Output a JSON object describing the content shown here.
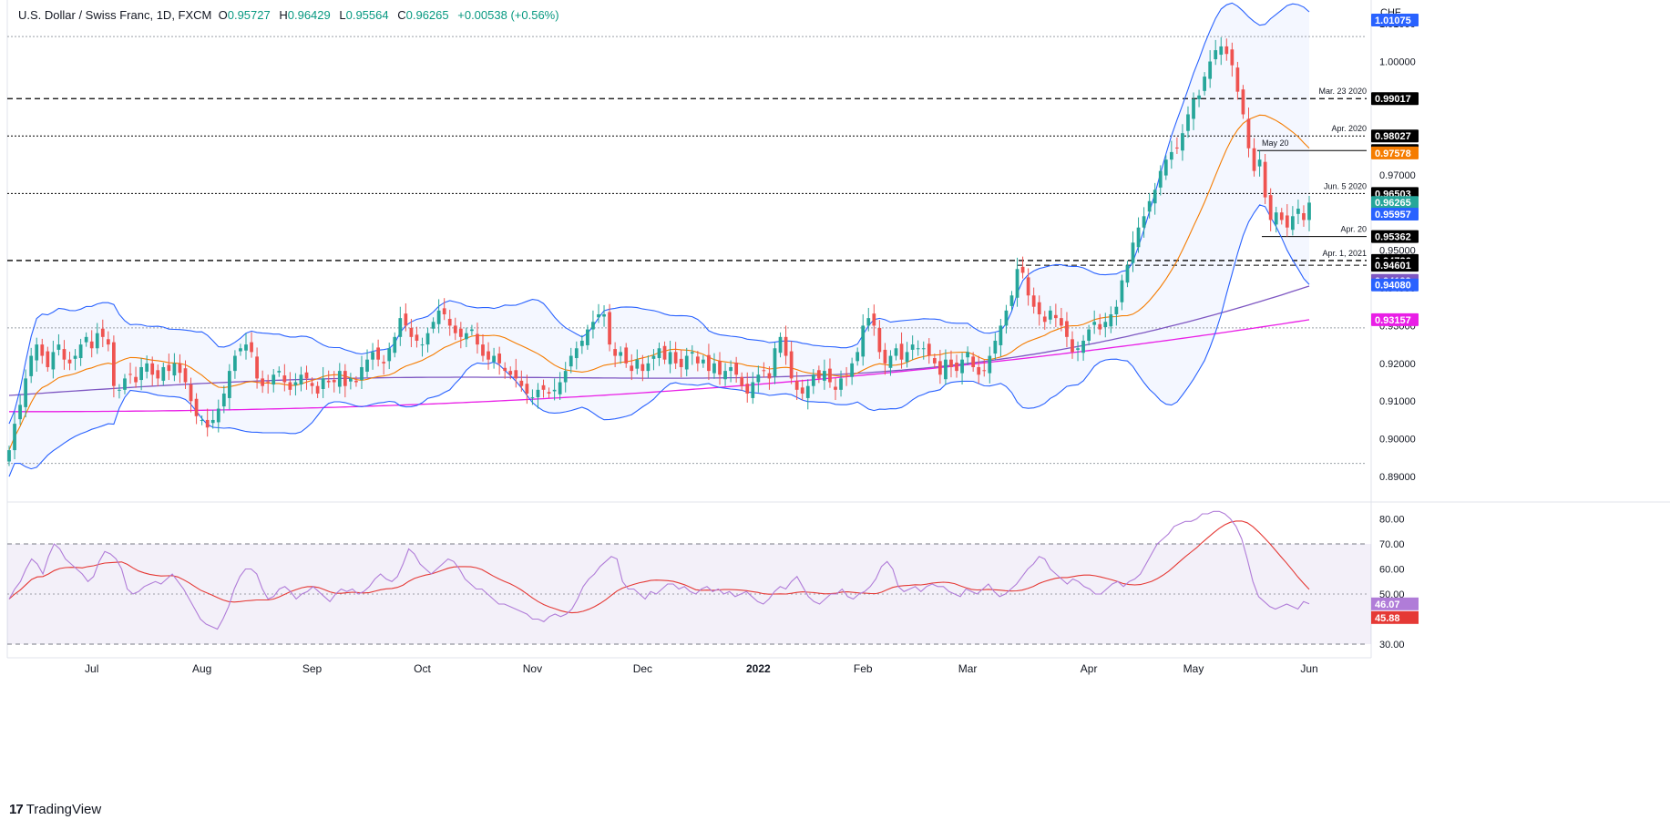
{
  "legend": {
    "symbol": "U.S. Dollar / Swiss Franc, 1D, FXCM",
    "open_label": "O",
    "open": "0.95727",
    "high_label": "H",
    "high": "0.96429",
    "low_label": "L",
    "low": "0.95564",
    "close_label": "C",
    "close": "0.96265",
    "change": "+0.00538 (+0.56%)"
  },
  "currency_label": "CHF",
  "brand": {
    "logo": "17",
    "name": "TradingView"
  },
  "colors": {
    "up": "#26a69a",
    "down": "#ef5350",
    "bb": "#2962ff",
    "bb_fill": "#2962ff",
    "ma20": "#f57c00",
    "ma100": "#7e57c2",
    "ma200": "#e91ee6",
    "rsi": "#b07cd8",
    "rsi_ma": "#e53935",
    "rsi_band": "#7e57c2"
  },
  "chart_data": [
    {
      "type": "candlestick",
      "title": "U.S. Dollar / Swiss Franc, 1D, FXCM",
      "ylim": [
        0.8835,
        1.0163
      ],
      "yticks": [
        "0.89000",
        "0.90000",
        "0.91000",
        "0.92000",
        "0.93000",
        "0.94000",
        "0.95000",
        "0.96000",
        "0.97000",
        "0.98000",
        "0.99000",
        "1.00000",
        "1.01000"
      ],
      "xlabels": [
        {
          "label": "Jul",
          "t": 16
        },
        {
          "label": "Aug",
          "t": 37
        },
        {
          "label": "Sep",
          "t": 59
        },
        {
          "label": "Oct",
          "t": 80
        },
        {
          "label": "Nov",
          "t": 101
        },
        {
          "label": "Dec",
          "t": 123
        },
        {
          "label": "2022",
          "t": 145,
          "bold": true
        },
        {
          "label": "Feb",
          "t": 166
        },
        {
          "label": "Mar",
          "t": 186
        },
        {
          "label": "Apr",
          "t": 209
        },
        {
          "label": "May",
          "t": 230
        },
        {
          "label": "Jun",
          "t": 252
        }
      ],
      "closes": [
        0.897,
        0.904,
        0.909,
        0.916,
        0.922,
        0.925,
        0.922,
        0.919,
        0.923,
        0.925,
        0.921,
        0.92,
        0.922,
        0.925,
        0.927,
        0.924,
        0.928,
        0.927,
        0.925,
        0.914,
        0.913,
        0.916,
        0.917,
        0.915,
        0.919,
        0.92,
        0.917,
        0.916,
        0.919,
        0.918,
        0.92,
        0.9175,
        0.915,
        0.91,
        0.906,
        0.905,
        0.903,
        0.905,
        0.908,
        0.912,
        0.918,
        0.922,
        0.924,
        0.925,
        0.923,
        0.916,
        0.914,
        0.915,
        0.917,
        0.918,
        0.915,
        0.913,
        0.915,
        0.917,
        0.916,
        0.914,
        0.912,
        0.916,
        0.915,
        0.915,
        0.918,
        0.914,
        0.916,
        0.915,
        0.919,
        0.921,
        0.923,
        0.921,
        0.92,
        0.924,
        0.927,
        0.932,
        0.93,
        0.927,
        0.926,
        0.925,
        0.928,
        0.931,
        0.934,
        0.933,
        0.93,
        0.928,
        0.927,
        0.928,
        0.929,
        0.925,
        0.922,
        0.921,
        0.922,
        0.92,
        0.918,
        0.917,
        0.916,
        0.914,
        0.912,
        0.911,
        0.913,
        0.913,
        0.912,
        0.913,
        0.915,
        0.918,
        0.922,
        0.924,
        0.926,
        0.929,
        0.931,
        0.933,
        0.933,
        0.925,
        0.922,
        0.923,
        0.92,
        0.918,
        0.921,
        0.918,
        0.92,
        0.922,
        0.924,
        0.921,
        0.923,
        0.92,
        0.919,
        0.922,
        0.923,
        0.92,
        0.921,
        0.918,
        0.92,
        0.917,
        0.918,
        0.919,
        0.917,
        0.914,
        0.912,
        0.915,
        0.917,
        0.918,
        0.916,
        0.924,
        0.927,
        0.922,
        0.916,
        0.913,
        0.912,
        0.914,
        0.917,
        0.916,
        0.918,
        0.915,
        0.913,
        0.916,
        0.917,
        0.92,
        0.923,
        0.93,
        0.932,
        0.93,
        0.923,
        0.92,
        0.922,
        0.924,
        0.921,
        0.923,
        0.925,
        0.924,
        0.924,
        0.922,
        0.92,
        0.917,
        0.921,
        0.919,
        0.918,
        0.921,
        0.923,
        0.919,
        0.917,
        0.918,
        0.922,
        0.926,
        0.93,
        0.934,
        0.938,
        0.945,
        0.944,
        0.938,
        0.935,
        0.933,
        0.931,
        0.934,
        0.932,
        0.93,
        0.927,
        0.923,
        0.924,
        0.926,
        0.929,
        0.931,
        0.929,
        0.931,
        0.933,
        0.935,
        0.942,
        0.946,
        0.952,
        0.956,
        0.959,
        0.963,
        0.966,
        0.971,
        0.974,
        0.976,
        0.977,
        0.981,
        0.986,
        0.99,
        0.991,
        0.996,
        1.0,
        1.003,
        1.004,
        1.002,
        0.999,
        0.992,
        0.986,
        0.977,
        0.971,
        0.974,
        0.964,
        0.958,
        0.96,
        0.958,
        0.956,
        0.959,
        0.961,
        0.958,
        0.9626
      ],
      "bands": [
        {
          "name": "",
          "y": 1.0066,
          "style": "dotted",
          "color": "#9aa0a6"
        },
        {
          "name": "Mar. 23 2020",
          "y": 0.99017,
          "style": "dashed",
          "color": "#000000"
        },
        {
          "name": "Apr. 2020",
          "y": 0.98027,
          "style": "dotted",
          "color": "#000000"
        },
        {
          "name": "May 20",
          "y": 0.97641,
          "style": "solid-short",
          "color": "#000000"
        },
        {
          "name": "Jun. 5 2020",
          "y": 0.96503,
          "style": "dotted",
          "color": "#000000"
        },
        {
          "name": "Apr. 20",
          "y": 0.95362,
          "style": "solid-short",
          "color": "#000000"
        },
        {
          "name": "Apr. 1, 2021",
          "y": 0.94726,
          "style": "dashed",
          "color": "#000000"
        },
        {
          "name": "",
          "y": 0.94601,
          "style": "dashed-short",
          "color": "#000000"
        },
        {
          "name": "",
          "y": 0.9294,
          "style": "dotted",
          "color": "#9aa0a6"
        },
        {
          "name": "",
          "y": 0.8935,
          "style": "dotted",
          "color": "#9aa0a6"
        }
      ],
      "price_tags": [
        {
          "value": "1.01075",
          "y": 1.01075,
          "bg": "#2962ff",
          "partial": true
        },
        {
          "value": "0.99017",
          "y": 0.99017,
          "bg": "#000000"
        },
        {
          "value": "0.98027",
          "y": 0.98027,
          "bg": "#000000"
        },
        {
          "value": "0.97641",
          "y": 0.97641,
          "bg": "#000000"
        },
        {
          "value": "0.97578",
          "y": 0.97578,
          "bg": "#f57c00"
        },
        {
          "value": "0.96503",
          "y": 0.96503,
          "bg": "#000000"
        },
        {
          "value": "0.96265",
          "y": 0.96265,
          "bg": "#26a69a"
        },
        {
          "value": "0.95957",
          "y": 0.95957,
          "bg": "#2962ff"
        },
        {
          "value": "0.95362",
          "y": 0.95362,
          "bg": "#000000"
        },
        {
          "value": "0.94726",
          "y": 0.94726,
          "bg": "#000000"
        },
        {
          "value": "0.94601",
          "y": 0.94601,
          "bg": "#000000"
        },
        {
          "value": "0.94199",
          "y": 0.94199,
          "bg": "#7e57c2"
        },
        {
          "value": "0.94080",
          "y": 0.9408,
          "bg": "#2962ff"
        },
        {
          "value": "0.93157",
          "y": 0.93157,
          "bg": "#e91ee6"
        }
      ],
      "ma100_end": 0.94199,
      "ma200_end": 0.93157
    },
    {
      "type": "line",
      "title": "RSI",
      "ylim": [
        26,
        86
      ],
      "yticks": [
        "30.00",
        "50.00",
        "60.00",
        "70.00",
        "80.00"
      ],
      "band": [
        30,
        70
      ],
      "mid": 50,
      "values": [
        48,
        52,
        55,
        60,
        64,
        62,
        58,
        65,
        70,
        68,
        64,
        62,
        60,
        58,
        55,
        57,
        63,
        67,
        66,
        64,
        60,
        52,
        50,
        51,
        53,
        54,
        55,
        54,
        56,
        58,
        55,
        52,
        48,
        44,
        40,
        38,
        37,
        36,
        40,
        45,
        52,
        57,
        60,
        60,
        58,
        52,
        48,
        49,
        52,
        53,
        51,
        48,
        50,
        51,
        53,
        51,
        49,
        47,
        50,
        52,
        51,
        52,
        50,
        51,
        53,
        56,
        58,
        56,
        55,
        57,
        62,
        68,
        66,
        62,
        60,
        58,
        60,
        62,
        64,
        63,
        60,
        56,
        54,
        52,
        52,
        50,
        48,
        46,
        46,
        45,
        44,
        43,
        42,
        40,
        40,
        39,
        41,
        42,
        41,
        42,
        44,
        48,
        53,
        56,
        58,
        61,
        63,
        65,
        64,
        55,
        52,
        52,
        50,
        48,
        51,
        50,
        52,
        54,
        54,
        52,
        53,
        51,
        50,
        52,
        53,
        51,
        52,
        50,
        51,
        49,
        50,
        51,
        49,
        47,
        46,
        48,
        51,
        53,
        52,
        55,
        57,
        53,
        49,
        47,
        46,
        48,
        50,
        50,
        52,
        49,
        48,
        50,
        51,
        53,
        56,
        61,
        63,
        60,
        53,
        51,
        52,
        53,
        51,
        53,
        54,
        53,
        53,
        51,
        50,
        49,
        52,
        51,
        50,
        52,
        54,
        51,
        49,
        50,
        52,
        54,
        57,
        60,
        62,
        65,
        64,
        60,
        58,
        56,
        54,
        56,
        55,
        53,
        52,
        50,
        50,
        52,
        54,
        55,
        53,
        55,
        56,
        58,
        62,
        66,
        70,
        72,
        74,
        77,
        78,
        79,
        79,
        80,
        82,
        82,
        83,
        83,
        82,
        80,
        77,
        72,
        64,
        55,
        49,
        47,
        45,
        44,
        45,
        46,
        45,
        44,
        47,
        46.07
      ],
      "rsi_ma_value": "45.88",
      "rsi_value": "46.07"
    }
  ]
}
